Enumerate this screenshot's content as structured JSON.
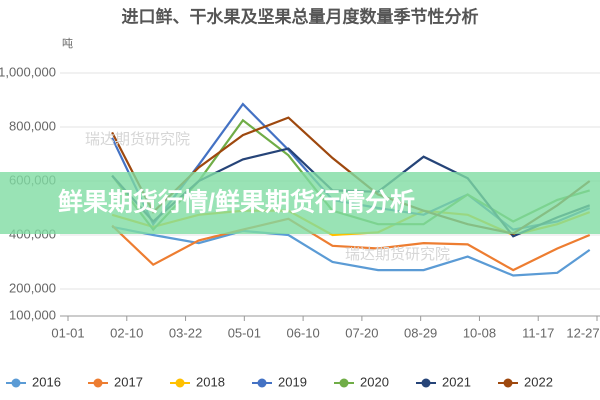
{
  "chart_data": {
    "type": "line",
    "title": "进口鲜、干水果及坚果总量月度数量季节性分析",
    "y_unit": "吨",
    "watermarks": [
      "瑞达期货研究院",
      "瑞达期货研究院"
    ],
    "x": [
      31,
      59,
      90,
      120,
      151,
      181,
      212,
      243,
      273,
      304,
      334,
      356
    ],
    "xlim": [
      1,
      361
    ],
    "xticks": [
      {
        "value": 1,
        "label": "01-01"
      },
      {
        "value": 41,
        "label": "02-10"
      },
      {
        "value": 81,
        "label": "03-22"
      },
      {
        "value": 121,
        "label": "05-01"
      },
      {
        "value": 161,
        "label": "06-10"
      },
      {
        "value": 201,
        "label": "07-20"
      },
      {
        "value": 241,
        "label": "08-29"
      },
      {
        "value": 281,
        "label": "10-08"
      },
      {
        "value": 321,
        "label": "11-17"
      },
      {
        "value": 361,
        "label": "12-27"
      }
    ],
    "ylim": [
      100000,
      1000000
    ],
    "yticks": [
      {
        "value": 100000,
        "label": "100,000"
      },
      {
        "value": 200000,
        "label": "200,000"
      },
      {
        "value": 400000,
        "label": "400,000"
      },
      {
        "value": 600000,
        "label": "600,000"
      },
      {
        "value": 800000,
        "label": "800,000"
      },
      {
        "value": 1000000,
        "label": "1,000,000"
      }
    ],
    "grid": true,
    "series": [
      {
        "name": "2016",
        "color": "#5b9bd5",
        "values": [
          430000,
          400000,
          370000,
          415000,
          400000,
          300000,
          270000,
          270000,
          320000,
          250000,
          260000,
          345000
        ]
      },
      {
        "name": "2017",
        "color": "#ed7d31",
        "values": [
          435000,
          290000,
          380000,
          420000,
          460000,
          360000,
          350000,
          370000,
          365000,
          270000,
          350000,
          400000
        ]
      },
      {
        "name": "2018",
        "color": "#ffc000",
        "values": [
          475000,
          430000,
          475000,
          490000,
          490000,
          400000,
          410000,
          490000,
          475000,
          400000,
          440000,
          485000
        ]
      },
      {
        "name": "2019",
        "color": "#4472c4",
        "values": [
          760000,
          440000,
          660000,
          885000,
          715000,
          530000,
          500000,
          475000,
          550000,
          420000,
          450000,
          500000
        ]
      },
      {
        "name": "2020",
        "color": "#70ad47",
        "values": [
          620000,
          420000,
          600000,
          825000,
          695000,
          490000,
          440000,
          440000,
          550000,
          450000,
          530000,
          565000
        ]
      },
      {
        "name": "2021",
        "color": "#264478",
        "values": [
          620000,
          450000,
          600000,
          680000,
          720000,
          565000,
          560000,
          690000,
          610000,
          395000,
          465000,
          510000
        ]
      },
      {
        "name": "2022",
        "color": "#9e480e",
        "values": [
          780000,
          485000,
          650000,
          770000,
          835000,
          685000,
          550000,
          490000,
          440000,
          405000,
          510000,
          600000
        ]
      }
    ]
  },
  "banner": "鲜果期货行情/鲜果期货行情分析"
}
